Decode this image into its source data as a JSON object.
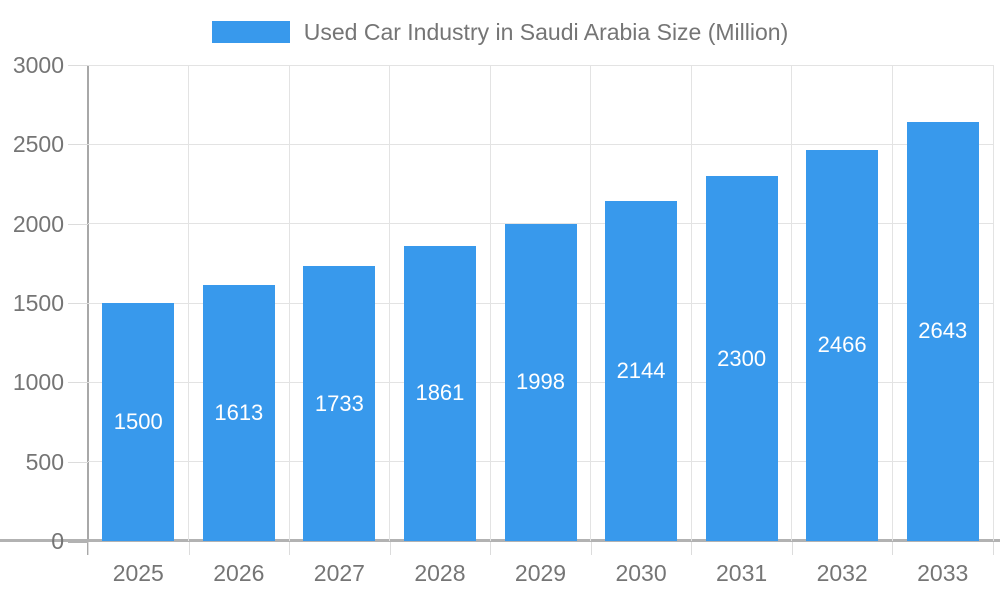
{
  "legend": {
    "label": "Used Car Industry in Saudi Arabia Size (Million)",
    "swatch_color": "#3899ec"
  },
  "chart_data": {
    "type": "bar",
    "title": "Used Car Industry in Saudi Arabia Size (Million)",
    "categories": [
      "2025",
      "2026",
      "2027",
      "2028",
      "2029",
      "2030",
      "2031",
      "2032",
      "2033"
    ],
    "values": [
      1500,
      1613,
      1733,
      1861,
      1998,
      2144,
      2300,
      2466,
      2643
    ],
    "xlabel": "",
    "ylabel": "",
    "ylim": [
      0,
      3000
    ],
    "ytick_step": 500,
    "grid": true,
    "legend_position": "top-center",
    "bar_color": "#3899ec",
    "value_label_color": "#ffffff",
    "axis_text_color": "#757575"
  }
}
